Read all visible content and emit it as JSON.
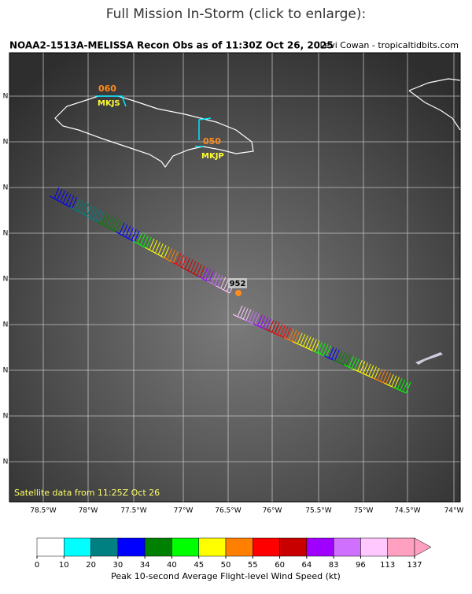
{
  "header": {
    "title": "Full Mission In-Storm (click to enlarge):"
  },
  "map": {
    "title": "NOAA2-1513A-MELISSA Recon Obs as of 11:30Z Oct 26, 2025",
    "credit": "Levi Cowan - tropicaltidbits.com",
    "stations": [
      {
        "value": "060",
        "name": "MKJS"
      },
      {
        "value": "050",
        "name": "MKJP"
      }
    ],
    "pressure_label": "952",
    "satellite_note": "Satellite data from 11:25Z Oct 26",
    "lon_labels": [
      "78.5°W",
      "78°W",
      "77.5°W",
      "77°W",
      "76.5°W",
      "76°W",
      "75.5°W",
      "75°W",
      "74.5°W",
      "74°W"
    ],
    "lat_labels": [
      "N",
      "N",
      "N",
      "N",
      "N",
      "N",
      "N",
      "N",
      "N"
    ]
  },
  "colorbar": {
    "ticks": [
      "0",
      "10",
      "20",
      "30",
      "34",
      "40",
      "45",
      "50",
      "55",
      "60",
      "64",
      "83",
      "96",
      "113",
      "137"
    ],
    "colors": [
      "#ffffff",
      "#00ffff",
      "#008080",
      "#0000ff",
      "#008000",
      "#00ff00",
      "#ffff00",
      "#ff8000",
      "#ff0000",
      "#c80000",
      "#a000ff",
      "#d070ff",
      "#ffc8ff",
      "#ffa0c0"
    ],
    "label": "Peak 10-second Average Flight-level Wind Speed (kt)"
  }
}
